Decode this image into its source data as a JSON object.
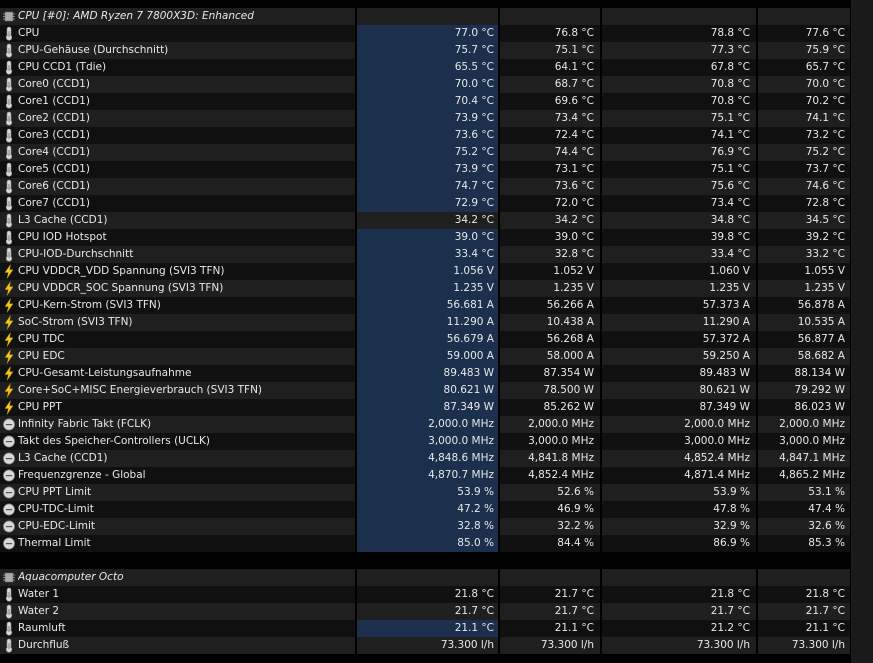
{
  "groups": [
    {
      "title": "CPU [#0]: AMD Ryzen 7 7800X3D: Enhanced",
      "icon": "chip-icon",
      "sensors": [
        {
          "icon": "temp",
          "name": "CPU",
          "v": [
            "77.0 °C",
            "76.8 °C",
            "78.8 °C",
            "77.6 °C"
          ],
          "hl": true
        },
        {
          "icon": "temp",
          "name": "CPU-Gehäuse (Durchschnitt)",
          "v": [
            "75.7 °C",
            "75.1 °C",
            "77.3 °C",
            "75.9 °C"
          ],
          "hl": true
        },
        {
          "icon": "temp",
          "name": "CPU CCD1 (Tdie)",
          "v": [
            "65.5 °C",
            "64.1 °C",
            "67.8 °C",
            "65.7 °C"
          ],
          "hl": true
        },
        {
          "icon": "temp",
          "name": "Core0 (CCD1)",
          "v": [
            "70.0 °C",
            "68.7 °C",
            "70.8 °C",
            "70.0 °C"
          ],
          "hl": true
        },
        {
          "icon": "temp",
          "name": "Core1 (CCD1)",
          "v": [
            "70.4 °C",
            "69.6 °C",
            "70.8 °C",
            "70.2 °C"
          ],
          "hl": true
        },
        {
          "icon": "temp",
          "name": "Core2 (CCD1)",
          "v": [
            "73.9 °C",
            "73.4 °C",
            "75.1 °C",
            "74.1 °C"
          ],
          "hl": true
        },
        {
          "icon": "temp",
          "name": "Core3 (CCD1)",
          "v": [
            "73.6 °C",
            "72.4 °C",
            "74.1 °C",
            "73.2 °C"
          ],
          "hl": true
        },
        {
          "icon": "temp",
          "name": "Core4 (CCD1)",
          "v": [
            "75.2 °C",
            "74.4 °C",
            "76.9 °C",
            "75.2 °C"
          ],
          "hl": true
        },
        {
          "icon": "temp",
          "name": "Core5 (CCD1)",
          "v": [
            "73.9 °C",
            "73.1 °C",
            "75.1 °C",
            "73.7 °C"
          ],
          "hl": true
        },
        {
          "icon": "temp",
          "name": "Core6 (CCD1)",
          "v": [
            "74.7 °C",
            "73.6 °C",
            "75.6 °C",
            "74.6 °C"
          ],
          "hl": true
        },
        {
          "icon": "temp",
          "name": "Core7 (CCD1)",
          "v": [
            "72.9 °C",
            "72.0 °C",
            "73.4 °C",
            "72.8 °C"
          ],
          "hl": true
        },
        {
          "icon": "temp",
          "name": "L3 Cache (CCD1)",
          "v": [
            "34.2 °C",
            "34.2 °C",
            "34.8 °C",
            "34.5 °C"
          ],
          "hl": false
        },
        {
          "icon": "temp",
          "name": "CPU IOD Hotspot",
          "v": [
            "39.0 °C",
            "39.0 °C",
            "39.8 °C",
            "39.2 °C"
          ],
          "hl": true
        },
        {
          "icon": "temp",
          "name": "CPU-IOD-Durchschnitt",
          "v": [
            "33.4 °C",
            "32.8 °C",
            "33.4 °C",
            "33.2 °C"
          ],
          "hl": true
        },
        {
          "icon": "bolt",
          "name": "CPU VDDCR_VDD Spannung (SVI3 TFN)",
          "v": [
            "1.056 V",
            "1.052 V",
            "1.060 V",
            "1.055 V"
          ],
          "hl": true
        },
        {
          "icon": "bolt",
          "name": "CPU VDDCR_SOC Spannung (SVI3 TFN)",
          "v": [
            "1.235 V",
            "1.235 V",
            "1.235 V",
            "1.235 V"
          ],
          "hl": true
        },
        {
          "icon": "bolt",
          "name": "CPU-Kern-Strom (SVI3 TFN)",
          "v": [
            "56.681 A",
            "56.266 A",
            "57.373 A",
            "56.878 A"
          ],
          "hl": true
        },
        {
          "icon": "bolt",
          "name": "SoC-Strom (SVI3 TFN)",
          "v": [
            "11.290 A",
            "10.438 A",
            "11.290 A",
            "10.535 A"
          ],
          "hl": true
        },
        {
          "icon": "bolt",
          "name": "CPU TDC",
          "v": [
            "56.679 A",
            "56.268 A",
            "57.372 A",
            "56.877 A"
          ],
          "hl": true
        },
        {
          "icon": "bolt",
          "name": "CPU EDC",
          "v": [
            "59.000 A",
            "58.000 A",
            "59.250 A",
            "58.682 A"
          ],
          "hl": true
        },
        {
          "icon": "bolt",
          "name": "CPU-Gesamt-Leistungsaufnahme",
          "v": [
            "89.483 W",
            "87.354 W",
            "89.483 W",
            "88.134 W"
          ],
          "hl": true
        },
        {
          "icon": "bolt",
          "name": "Core+SoC+MISC Energieverbrauch (SVI3 TFN)",
          "v": [
            "80.621 W",
            "78.500 W",
            "80.621 W",
            "79.292 W"
          ],
          "hl": true
        },
        {
          "icon": "bolt",
          "name": "CPU PPT",
          "v": [
            "87.349 W",
            "85.262 W",
            "87.349 W",
            "86.023 W"
          ],
          "hl": true
        },
        {
          "icon": "clock",
          "name": "Infinity Fabric Takt (FCLK)",
          "v": [
            "2,000.0 MHz",
            "2,000.0 MHz",
            "2,000.0 MHz",
            "2,000.0 MHz"
          ],
          "hl": true
        },
        {
          "icon": "clock",
          "name": "Takt des Speicher-Controllers (UCLK)",
          "v": [
            "3,000.0 MHz",
            "3,000.0 MHz",
            "3,000.0 MHz",
            "3,000.0 MHz"
          ],
          "hl": true
        },
        {
          "icon": "clock",
          "name": "L3 Cache (CCD1)",
          "v": [
            "4,848.6 MHz",
            "4,841.8 MHz",
            "4,852.4 MHz",
            "4,847.1 MHz"
          ],
          "hl": true
        },
        {
          "icon": "clock",
          "name": "Frequenzgrenze - Global",
          "v": [
            "4,870.7 MHz",
            "4,852.4 MHz",
            "4,871.4 MHz",
            "4,865.2 MHz"
          ],
          "hl": true
        },
        {
          "icon": "clock",
          "name": "CPU PPT Limit",
          "v": [
            "53.9 %",
            "52.6 %",
            "53.9 %",
            "53.1 %"
          ],
          "hl": true
        },
        {
          "icon": "clock",
          "name": "CPU-TDC-Limit",
          "v": [
            "47.2 %",
            "46.9 %",
            "47.8 %",
            "47.4 %"
          ],
          "hl": true
        },
        {
          "icon": "clock",
          "name": "CPU-EDC-Limit",
          "v": [
            "32.8 %",
            "32.2 %",
            "32.9 %",
            "32.6 %"
          ],
          "hl": true
        },
        {
          "icon": "clock",
          "name": "Thermal Limit",
          "v": [
            "85.0 %",
            "84.4 %",
            "86.9 %",
            "85.3 %"
          ],
          "hl": true
        }
      ]
    },
    {
      "title": "Aquacomputer Octo",
      "icon": "chip-icon",
      "sensors": [
        {
          "icon": "temp",
          "name": "Water 1",
          "v": [
            "21.8 °C",
            "21.7 °C",
            "21.8 °C",
            "21.8 °C"
          ],
          "hl": false
        },
        {
          "icon": "temp",
          "name": "Water 2",
          "v": [
            "21.7 °C",
            "21.7 °C",
            "21.7 °C",
            "21.7 °C"
          ],
          "hl": false
        },
        {
          "icon": "temp",
          "name": "Raumluft",
          "v": [
            "21.1 °C",
            "21.1 °C",
            "21.2 °C",
            "21.1 °C"
          ],
          "hl": true
        },
        {
          "icon": "temp",
          "name": "Durchfluß",
          "v": [
            "73.300 l/h",
            "73.300 l/h",
            "73.300 l/h",
            "73.300 l/h"
          ],
          "hl": false
        }
      ]
    }
  ],
  "colors": {
    "highlight": "#1c2f4c",
    "row_a": "#101010",
    "row_b": "#1f1f1f",
    "bolt": "#f2c81e",
    "thermo": "#c8c8c8"
  }
}
